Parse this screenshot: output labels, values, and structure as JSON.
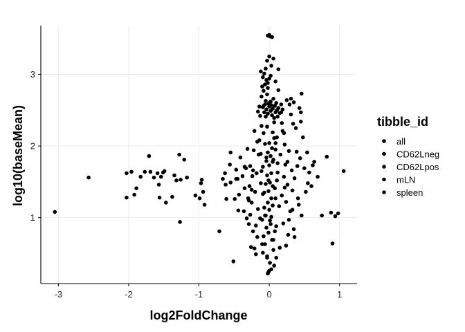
{
  "chart_data": {
    "type": "scatter",
    "xlabel": "log2FoldChange",
    "ylabel": "log10(baseMean)",
    "xlim": [
      -3.25,
      1.25
    ],
    "ylim": [
      0.08,
      3.68
    ],
    "x_ticks": [
      -3,
      -2,
      -1,
      0,
      1
    ],
    "x_tick_labels": [
      "-3",
      "-2",
      "-1",
      "0",
      "1"
    ],
    "y_ticks": [
      1,
      2,
      3
    ],
    "y_tick_labels": [
      "1",
      "2",
      "3"
    ],
    "grid": true,
    "legend": {
      "title": "tibble_id",
      "position": "right",
      "entries": [
        "all",
        "CD62Lneg",
        "CD62Lpos",
        "mLN",
        "spleen"
      ]
    },
    "point_color": "#000000",
    "points": [
      [
        -3.05,
        1.08
      ],
      [
        -2.57,
        1.56
      ],
      [
        -2.03,
        1.62
      ],
      [
        -2.03,
        1.28
      ],
      [
        -1.96,
        1.64
      ],
      [
        -1.92,
        1.32
      ],
      [
        -1.89,
        1.41
      ],
      [
        -1.83,
        1.57
      ],
      [
        -1.77,
        1.64
      ],
      [
        -1.71,
        1.86
      ],
      [
        -1.69,
        1.64
      ],
      [
        -1.64,
        1.56
      ],
      [
        -1.59,
        1.62
      ],
      [
        -1.57,
        1.46
      ],
      [
        -1.56,
        1.28
      ],
      [
        -1.54,
        1.57
      ],
      [
        -1.51,
        1.63
      ],
      [
        -1.49,
        1.65
      ],
      [
        -1.47,
        1.21
      ],
      [
        -1.38,
        1.29
      ],
      [
        -1.35,
        1.59
      ],
      [
        -1.32,
        1.52
      ],
      [
        -1.28,
        1.88
      ],
      [
        -1.27,
        0.94
      ],
      [
        -1.26,
        1.53
      ],
      [
        -1.21,
        1.81
      ],
      [
        -1.17,
        1.56
      ],
      [
        -1.05,
        1.31
      ],
      [
        -0.99,
        1.27
      ],
      [
        -0.97,
        1.48
      ],
      [
        -0.96,
        1.53
      ],
      [
        -0.94,
        1.36
      ],
      [
        -0.92,
        1.18
      ],
      [
        -0.71,
        0.81
      ],
      [
        -0.66,
        1.54
      ],
      [
        -0.63,
        1.62
      ],
      [
        -0.61,
        1.26
      ],
      [
        -0.56,
        1.74
      ],
      [
        -0.55,
        1.49
      ],
      [
        -0.51,
        0.39
      ],
      [
        -0.49,
        1.26
      ],
      [
        -0.47,
        1.67
      ],
      [
        -0.45,
        1.54
      ],
      [
        -0.43,
        1.32
      ],
      [
        -0.41,
        1.84
      ],
      [
        -0.38,
        1.58
      ],
      [
        -0.36,
        1.09
      ],
      [
        -0.35,
        1.41
      ],
      [
        -0.33,
        1.69
      ],
      [
        -0.31,
        1.96
      ],
      [
        -0.3,
        1.27
      ],
      [
        -0.29,
        0.91
      ],
      [
        -0.28,
        1.44
      ],
      [
        -0.27,
        1.72
      ],
      [
        -0.25,
        1.21
      ],
      [
        -0.24,
        1.58
      ],
      [
        -0.23,
        0.81
      ],
      [
        -0.22,
        1.94
      ],
      [
        -0.21,
        0.57
      ],
      [
        -0.2,
        1.36
      ],
      [
        -0.19,
        0.49
      ],
      [
        -0.18,
        1.62
      ],
      [
        -0.17,
        0.73
      ],
      [
        -0.16,
        1.12
      ],
      [
        -0.15,
        1.88
      ],
      [
        -0.14,
        2.08
      ],
      [
        -0.13,
        0.99
      ],
      [
        -0.12,
        1.48
      ],
      [
        -0.11,
        2.28
      ],
      [
        -0.1,
        0.63
      ],
      [
        -0.09,
        1.71
      ],
      [
        -0.08,
        2.56
      ],
      [
        -0.07,
        1.35
      ],
      [
        -0.06,
        1.03
      ],
      [
        -0.05,
        2.41
      ],
      [
        -0.04,
        1.84
      ],
      [
        -0.03,
        0.44
      ],
      [
        -0.02,
        2.88
      ],
      [
        -0.01,
        1.52
      ],
      [
        0.0,
        2.04
      ],
      [
        0.01,
        0.96
      ],
      [
        0.02,
        2.62
      ],
      [
        0.03,
        1.27
      ],
      [
        0.04,
        3.52
      ],
      [
        0.05,
        1.78
      ],
      [
        0.06,
        0.69
      ],
      [
        0.07,
        2.33
      ],
      [
        0.08,
        1.41
      ],
      [
        0.09,
        1.95
      ],
      [
        0.1,
        0.88
      ],
      [
        0.11,
        2.12
      ],
      [
        0.12,
        1.63
      ],
      [
        0.13,
        2.78
      ],
      [
        0.14,
        1.16
      ],
      [
        0.15,
        0.58
      ],
      [
        0.16,
        1.88
      ],
      [
        0.17,
        2.47
      ],
      [
        0.18,
        1.31
      ],
      [
        0.19,
        2.21
      ],
      [
        0.2,
        0.92
      ],
      [
        0.21,
        1.57
      ],
      [
        0.22,
        2.02
      ],
      [
        0.23,
        1.74
      ],
      [
        0.24,
        1.22
      ],
      [
        0.25,
        2.64
      ],
      [
        0.26,
        1.46
      ],
      [
        0.27,
        0.76
      ],
      [
        0.28,
        1.93
      ],
      [
        0.29,
        2.58
      ],
      [
        0.3,
        1.09
      ],
      [
        0.31,
        2.44
      ],
      [
        0.32,
        1.66
      ],
      [
        0.33,
        1.38
      ],
      [
        0.34,
        2.31
      ],
      [
        0.35,
        0.84
      ],
      [
        0.36,
        1.55
      ],
      [
        0.38,
        2.25
      ],
      [
        0.4,
        1.72
      ],
      [
        0.41,
        1.27
      ],
      [
        0.43,
        2.53
      ],
      [
        0.44,
        1.83
      ],
      [
        0.45,
        2.34
      ],
      [
        0.46,
        1.03
      ],
      [
        0.48,
        2.12
      ],
      [
        0.5,
        1.69
      ],
      [
        0.52,
        1.36
      ],
      [
        0.54,
        1.91
      ],
      [
        0.57,
        1.63
      ],
      [
        0.6,
        1.44
      ],
      [
        0.64,
        1.78
      ],
      [
        0.69,
        1.57
      ],
      [
        0.75,
        1.03
      ],
      [
        0.82,
        1.85
      ],
      [
        0.88,
        1.07
      ],
      [
        0.9,
        0.64
      ],
      [
        0.94,
        1.02
      ],
      [
        0.98,
        1.06
      ],
      [
        1.06,
        1.65
      ],
      [
        -0.11,
        2.69
      ],
      [
        -0.09,
        2.54
      ],
      [
        -0.07,
        2.47
      ],
      [
        -0.06,
        2.58
      ],
      [
        -0.05,
        2.63
      ],
      [
        -0.04,
        2.51
      ],
      [
        -0.03,
        2.72
      ],
      [
        -0.02,
        2.45
      ],
      [
        -0.01,
        2.59
      ],
      [
        0.0,
        2.55
      ],
      [
        0.01,
        2.61
      ],
      [
        0.02,
        2.49
      ],
      [
        0.03,
        2.57
      ],
      [
        0.04,
        2.43
      ],
      [
        0.05,
        2.52
      ],
      [
        0.06,
        2.66
      ],
      [
        0.07,
        2.39
      ],
      [
        0.08,
        2.56
      ],
      [
        0.09,
        2.47
      ],
      [
        0.1,
        2.6
      ],
      [
        0.11,
        2.5
      ],
      [
        0.12,
        2.41
      ],
      [
        0.13,
        2.53
      ],
      [
        0.15,
        2.46
      ],
      [
        0.17,
        2.58
      ],
      [
        0.19,
        2.51
      ],
      [
        -0.13,
        2.42
      ],
      [
        -0.14,
        2.55
      ],
      [
        -0.16,
        2.48
      ],
      [
        -0.1,
        2.83
      ],
      [
        -0.08,
        2.77
      ],
      [
        -0.06,
        2.86
      ],
      [
        -0.04,
        2.92
      ],
      [
        -0.02,
        2.81
      ],
      [
        0.0,
        2.94
      ],
      [
        -0.07,
        3.01
      ],
      [
        0.02,
        2.98
      ],
      [
        -0.05,
        3.08
      ],
      [
        0.03,
        3.12
      ],
      [
        -0.03,
        3.19
      ],
      [
        0.06,
        3.22
      ],
      [
        0.0,
        3.25
      ],
      [
        -0.09,
        2.96
      ],
      [
        0.09,
        2.9
      ],
      [
        0.13,
        3.07
      ],
      [
        -0.12,
        3.04
      ],
      [
        -0.02,
        3.54
      ],
      [
        0.01,
        3.53
      ],
      [
        -0.01,
        3.54
      ],
      [
        0.0,
        3.55
      ],
      [
        -0.05,
        1.47
      ],
      [
        -0.03,
        1.59
      ],
      [
        -0.01,
        1.37
      ],
      [
        0.01,
        1.49
      ],
      [
        0.03,
        1.62
      ],
      [
        0.05,
        1.44
      ],
      [
        -0.04,
        1.79
      ],
      [
        -0.02,
        1.91
      ],
      [
        0.0,
        1.73
      ],
      [
        0.02,
        1.86
      ],
      [
        0.04,
        1.97
      ],
      [
        0.06,
        1.81
      ],
      [
        -0.06,
        2.03
      ],
      [
        0.07,
        2.11
      ],
      [
        -0.08,
        2.18
      ],
      [
        0.09,
        2.04
      ],
      [
        -0.03,
        2.27
      ],
      [
        0.05,
        2.19
      ],
      [
        -0.07,
        1.14
      ],
      [
        -0.05,
        1.03
      ],
      [
        -0.02,
        1.21
      ],
      [
        0.0,
        1.11
      ],
      [
        0.03,
        1.01
      ],
      [
        0.05,
        1.17
      ],
      [
        -0.04,
        0.86
      ],
      [
        -0.01,
        0.79
      ],
      [
        0.02,
        0.91
      ],
      [
        0.04,
        0.69
      ],
      [
        -0.06,
        0.63
      ],
      [
        0.06,
        0.55
      ],
      [
        -0.03,
        0.46
      ],
      [
        0.01,
        0.37
      ],
      [
        0.03,
        0.28
      ],
      [
        -0.01,
        0.24
      ],
      [
        -0.02,
        0.22
      ],
      [
        0.0,
        0.26
      ],
      [
        0.07,
        0.33
      ],
      [
        -0.09,
        0.51
      ],
      [
        0.1,
        0.44
      ],
      [
        -0.08,
        0.74
      ],
      [
        0.08,
        0.81
      ],
      [
        -0.1,
        0.97
      ],
      [
        0.09,
        1.27
      ],
      [
        -0.09,
        1.33
      ],
      [
        0.11,
        1.52
      ],
      [
        -0.11,
        1.65
      ],
      [
        0.12,
        1.76
      ],
      [
        -0.12,
        1.89
      ],
      [
        0.31,
        2.66
      ],
      [
        0.35,
        2.61
      ],
      [
        0.45,
        2.47
      ],
      [
        0.46,
        2.73
      ],
      [
        -0.47,
        1.54
      ],
      [
        -0.29,
        1.24
      ],
      [
        -0.62,
        1.46
      ],
      [
        -0.35,
        1.71
      ],
      [
        0.55,
        1.48
      ],
      [
        0.62,
        1.73
      ],
      [
        -0.44,
        1.1
      ],
      [
        0.42,
        1.18
      ],
      [
        -0.55,
        1.91
      ],
      [
        0.39,
        1.92
      ],
      [
        -0.27,
        1.04
      ],
      [
        0.28,
        0.97
      ],
      [
        -0.19,
        0.89
      ],
      [
        0.22,
        1.42
      ],
      [
        -0.23,
        1.66
      ],
      [
        0.26,
        1.78
      ],
      [
        -0.17,
        2.06
      ],
      [
        0.21,
        2.18
      ],
      [
        -0.25,
        1.39
      ],
      [
        0.33,
        1.11
      ],
      [
        -0.32,
        0.99
      ],
      [
        0.36,
        0.73
      ],
      [
        -0.26,
        0.59
      ],
      [
        0.24,
        0.61
      ],
      [
        -0.21,
        2.21
      ],
      [
        0.18,
        2.32
      ]
    ]
  }
}
